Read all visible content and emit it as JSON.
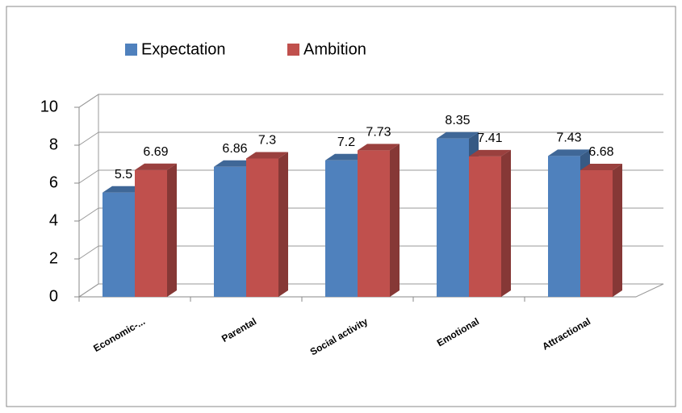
{
  "chart_data": {
    "type": "bar3d",
    "categories": [
      "Economic-...",
      "Parental",
      "Social activity",
      "Emotional",
      "Attractional"
    ],
    "series": [
      {
        "name": "Expectation",
        "color": "#4f81bd",
        "values": [
          5.5,
          6.86,
          7.2,
          8.35,
          7.43
        ]
      },
      {
        "name": "Ambition",
        "color": "#c0504d",
        "values": [
          6.69,
          7.3,
          7.73,
          7.41,
          6.68
        ]
      }
    ],
    "ylim": [
      0,
      10
    ],
    "yticks": [
      0,
      2,
      4,
      6,
      8,
      10
    ],
    "grid": true,
    "legend": "top"
  }
}
